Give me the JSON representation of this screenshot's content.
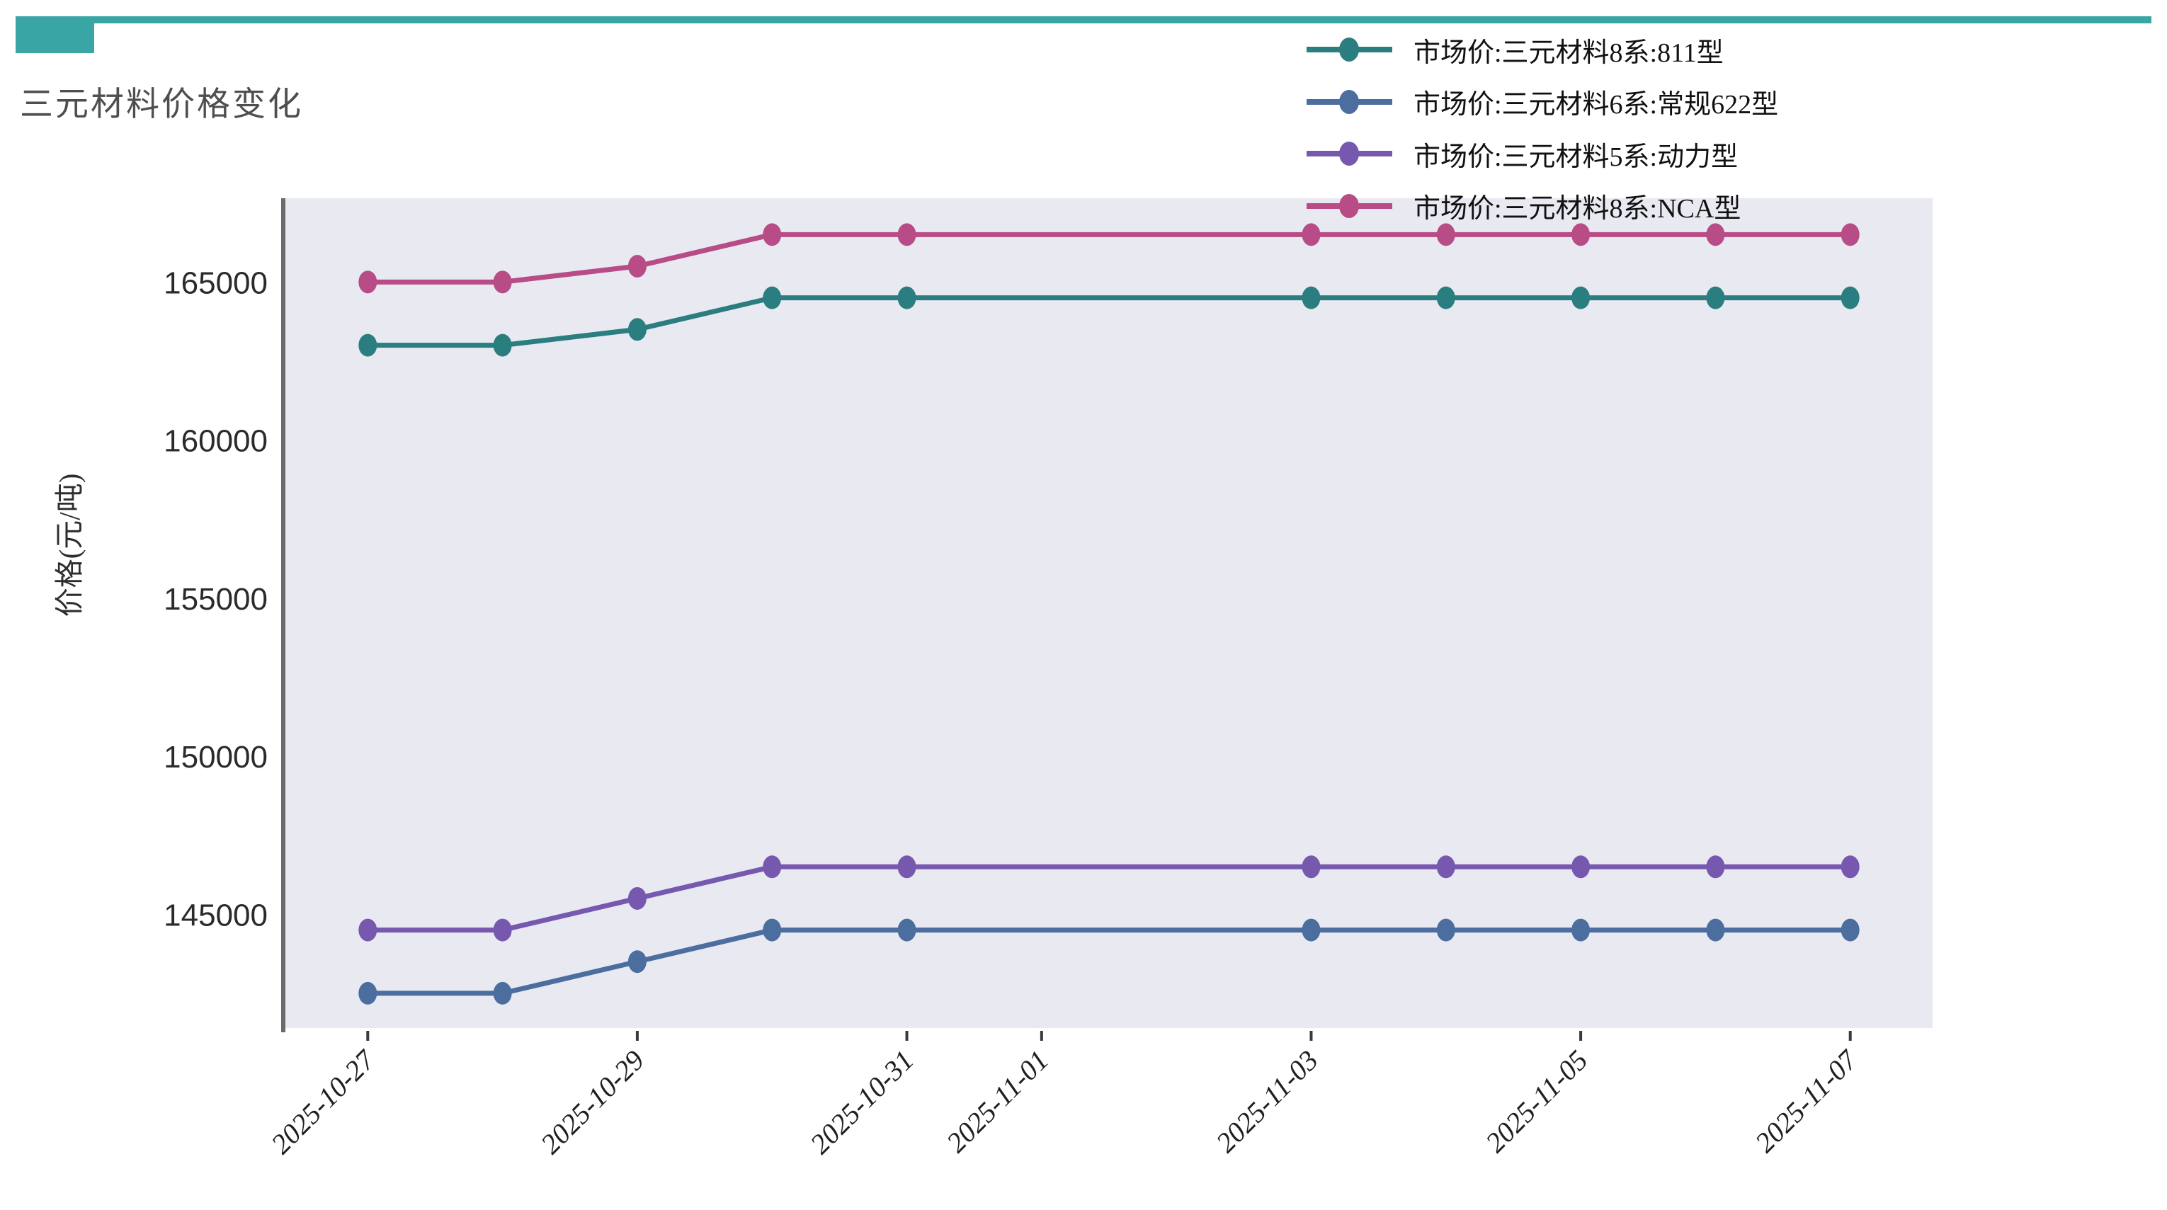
{
  "banner": {
    "color": "#3aa5a5"
  },
  "title": "三元材料价格变化",
  "legend": {
    "items": [
      {
        "label": "市场价:三元材料8系:811型",
        "color": "#2b7e7f"
      },
      {
        "label": "市场价:三元材料6系:常规622型",
        "color": "#4b6e9f"
      },
      {
        "label": "市场价:三元材料5系:动力型",
        "color": "#7659ae"
      },
      {
        "label": "市场价:三元材料8系:NCA型",
        "color": "#b84c86"
      }
    ]
  },
  "chart_data": {
    "type": "line",
    "title": "三元材料价格变化",
    "xlabel": "",
    "ylabel": "价格(元/吨)",
    "plot_bg": "#e9e9f2",
    "axis_spine_color": "#6b6b6b",
    "tick_color": "#2b2b2b",
    "x_dates": [
      "2025-10-27",
      "2025-10-28",
      "2025-10-29",
      "2025-10-30",
      "2025-10-31",
      "2025-11-03",
      "2025-11-04",
      "2025-11-05",
      "2025-11-06",
      "2025-11-07"
    ],
    "x_day_offsets": [
      0,
      1,
      2,
      3,
      4,
      7,
      8,
      9,
      10,
      11
    ],
    "x_axis_span_days": 11,
    "x_ticks": [
      {
        "label": "2025-10-27",
        "day_offset": 0
      },
      {
        "label": "2025-10-29",
        "day_offset": 2
      },
      {
        "label": "2025-10-31",
        "day_offset": 4
      },
      {
        "label": "2025-11-01",
        "day_offset": 5
      },
      {
        "label": "2025-11-03",
        "day_offset": 7
      },
      {
        "label": "2025-11-05",
        "day_offset": 9
      },
      {
        "label": "2025-11-07",
        "day_offset": 11
      }
    ],
    "y_ticks": [
      145000,
      150000,
      155000,
      160000,
      165000
    ],
    "ylim": [
      141400,
      167650
    ],
    "grid": false,
    "legend_position": "top-right",
    "series": [
      {
        "name": "市场价:三元材料8系:811型",
        "color": "#2b7e7f",
        "values": [
          163000,
          163000,
          163500,
          164500,
          164500,
          164500,
          164500,
          164500,
          164500,
          164500
        ]
      },
      {
        "name": "市场价:三元材料6系:常规622型",
        "color": "#4b6e9f",
        "values": [
          142500,
          142500,
          143500,
          144500,
          144500,
          144500,
          144500,
          144500,
          144500,
          144500
        ]
      },
      {
        "name": "市场价:三元材料5系:动力型",
        "color": "#7659ae",
        "values": [
          144500,
          144500,
          145500,
          146500,
          146500,
          146500,
          146500,
          146500,
          146500,
          146500
        ]
      },
      {
        "name": "市场价:三元材料8系:NCA型",
        "color": "#b84c86",
        "values": [
          165000,
          165000,
          165500,
          166500,
          166500,
          166500,
          166500,
          166500,
          166500,
          166500
        ]
      }
    ]
  }
}
